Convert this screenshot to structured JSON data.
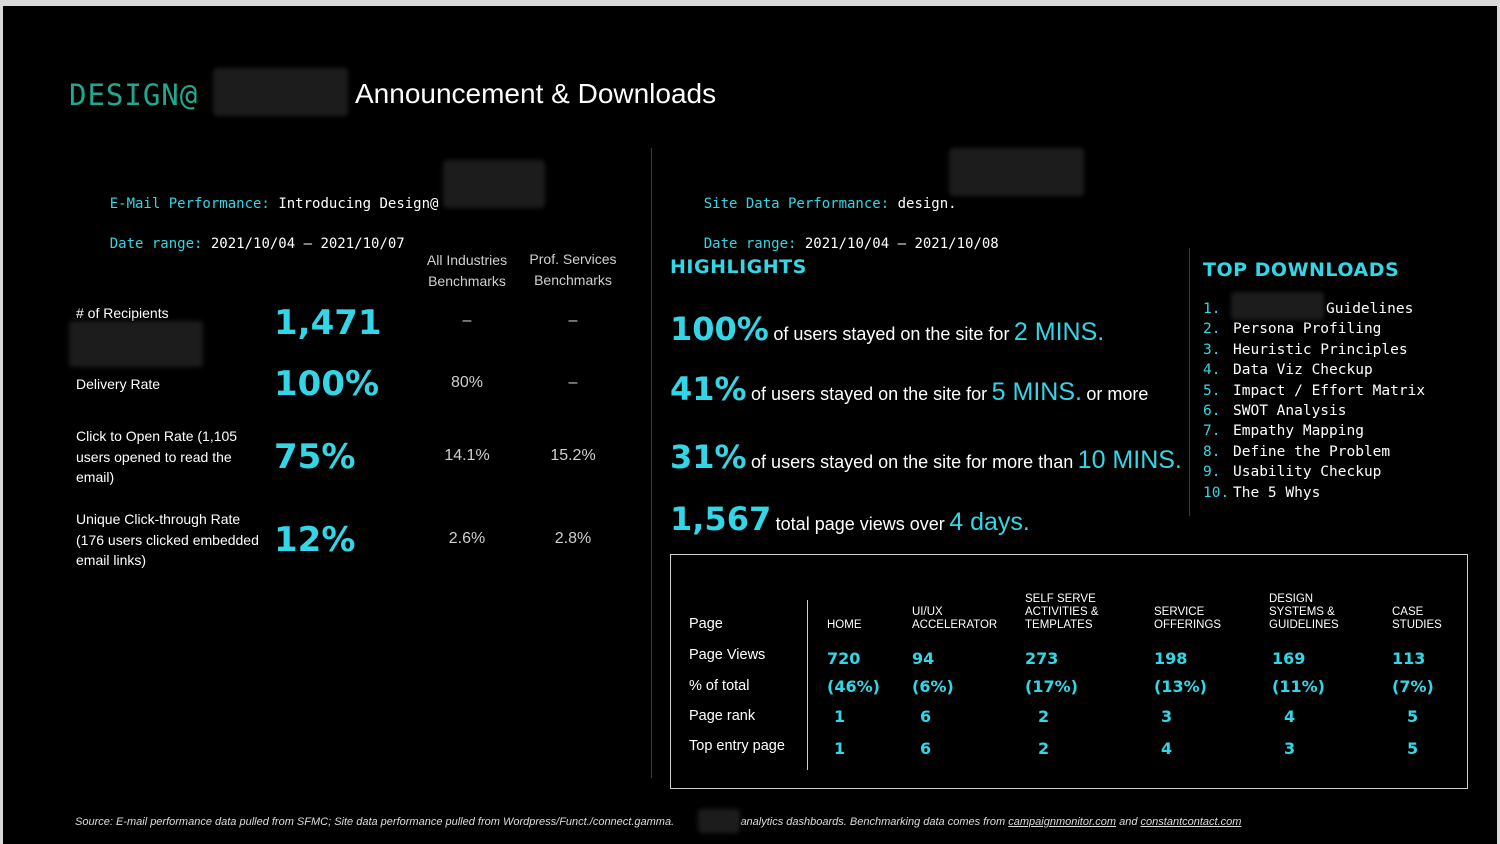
{
  "header": {
    "brand": "DESIGN@",
    "title": "Announcement & Downloads"
  },
  "email": {
    "perf_label": "E-Mail Performance:",
    "perf_value": "Introducing Design@",
    "date_label": "Date range:",
    "date_value": "2021/10/04 – 2021/10/07",
    "bench_headers": [
      [
        "All Industries",
        "Benchmarks"
      ],
      [
        "Prof. Services",
        "Benchmarks"
      ]
    ],
    "metrics": [
      {
        "label": "# of Recipients",
        "value": "1,471",
        "all": "–",
        "prof": "–"
      },
      {
        "label": "Delivery Rate",
        "value": "100%",
        "all": "80%",
        "prof": "–"
      },
      {
        "label": "Click to Open Rate (1,105 users opened to read the email)",
        "value": "75%",
        "all": "14.1%",
        "prof": "15.2%"
      },
      {
        "label": "Unique Click-through Rate (176 users clicked embedded email links)",
        "value": "12%",
        "all": "2.6%",
        "prof": "2.8%"
      }
    ]
  },
  "site": {
    "perf_label": "Site Data Performance:",
    "perf_value": "design.",
    "date_label": "Date range:",
    "date_value": "2021/10/04 – 2021/10/08"
  },
  "highlights": {
    "heading": "HIGHLIGHTS",
    "rows": [
      {
        "big": "100%",
        "text": "of users stayed on the site for",
        "accent": "2 MINS.",
        "tail": ""
      },
      {
        "big": "41%",
        "text": "of users stayed on the site for",
        "accent": "5 MINS.",
        "tail": "or more"
      },
      {
        "big": "31%",
        "text": "of users stayed on the site for more than",
        "accent": "10 MINS.",
        "tail": ""
      },
      {
        "big": "1,567",
        "text": "total page views over",
        "accent": "4 days.",
        "tail": ""
      }
    ]
  },
  "downloads": {
    "heading": "TOP DOWNLOADS",
    "items": [
      {
        "num": "1.",
        "label": "Guidelines"
      },
      {
        "num": "2.",
        "label": "Persona Profiling"
      },
      {
        "num": "3.",
        "label": "Heuristic Principles"
      },
      {
        "num": "4.",
        "label": "Data Viz Checkup"
      },
      {
        "num": "5.",
        "label": "Impact / Effort Matrix"
      },
      {
        "num": "6.",
        "label": "SWOT Analysis"
      },
      {
        "num": "7.",
        "label": "Empathy Mapping"
      },
      {
        "num": "8.",
        "label": "Define the Problem"
      },
      {
        "num": "9.",
        "label": "Usability Checkup"
      },
      {
        "num": "10.",
        "label": "The 5 Whys"
      }
    ]
  },
  "table": {
    "row_labels": [
      "Page",
      "Page Views",
      "% of total",
      "Page rank",
      "Top entry page"
    ],
    "columns": [
      {
        "header": [
          "HOME"
        ],
        "views": "720",
        "pct": "(46%)",
        "rank": "1",
        "entry": "1"
      },
      {
        "header": [
          "UI/UX",
          "ACCELERATOR"
        ],
        "views": "94",
        "pct": "(6%)",
        "rank": "6",
        "entry": "6"
      },
      {
        "header": [
          "SELF SERVE",
          "ACTIVITIES &",
          "TEMPLATES"
        ],
        "views": "273",
        "pct": "(17%)",
        "rank": "2",
        "entry": "2"
      },
      {
        "header": [
          "SERVICE",
          "OFFERINGS"
        ],
        "views": "198",
        "pct": "(13%)",
        "rank": "3",
        "entry": "4"
      },
      {
        "header": [
          "DESIGN",
          "SYSTEMS &",
          "GUIDELINES"
        ],
        "views": "169",
        "pct": "(11%)",
        "rank": "4",
        "entry": "3"
      },
      {
        "header": [
          "CASE",
          "STUDIES"
        ],
        "views": "113",
        "pct": "(7%)",
        "rank": "5",
        "entry": "5"
      }
    ]
  },
  "footer": {
    "text_a": "Source: E-mail performance data pulled from SFMC; Site data performance pulled from Wordpress/Funct./connect.gamma.",
    "text_b": "site analytics dashboards. Benchmarking data comes from",
    "link1": "campaignmonitor.com",
    "and": "and",
    "link2": "constantcontact.com"
  },
  "colors": {
    "accent": "#33d6e6",
    "brand": "#1fa990",
    "background": "#000000"
  }
}
